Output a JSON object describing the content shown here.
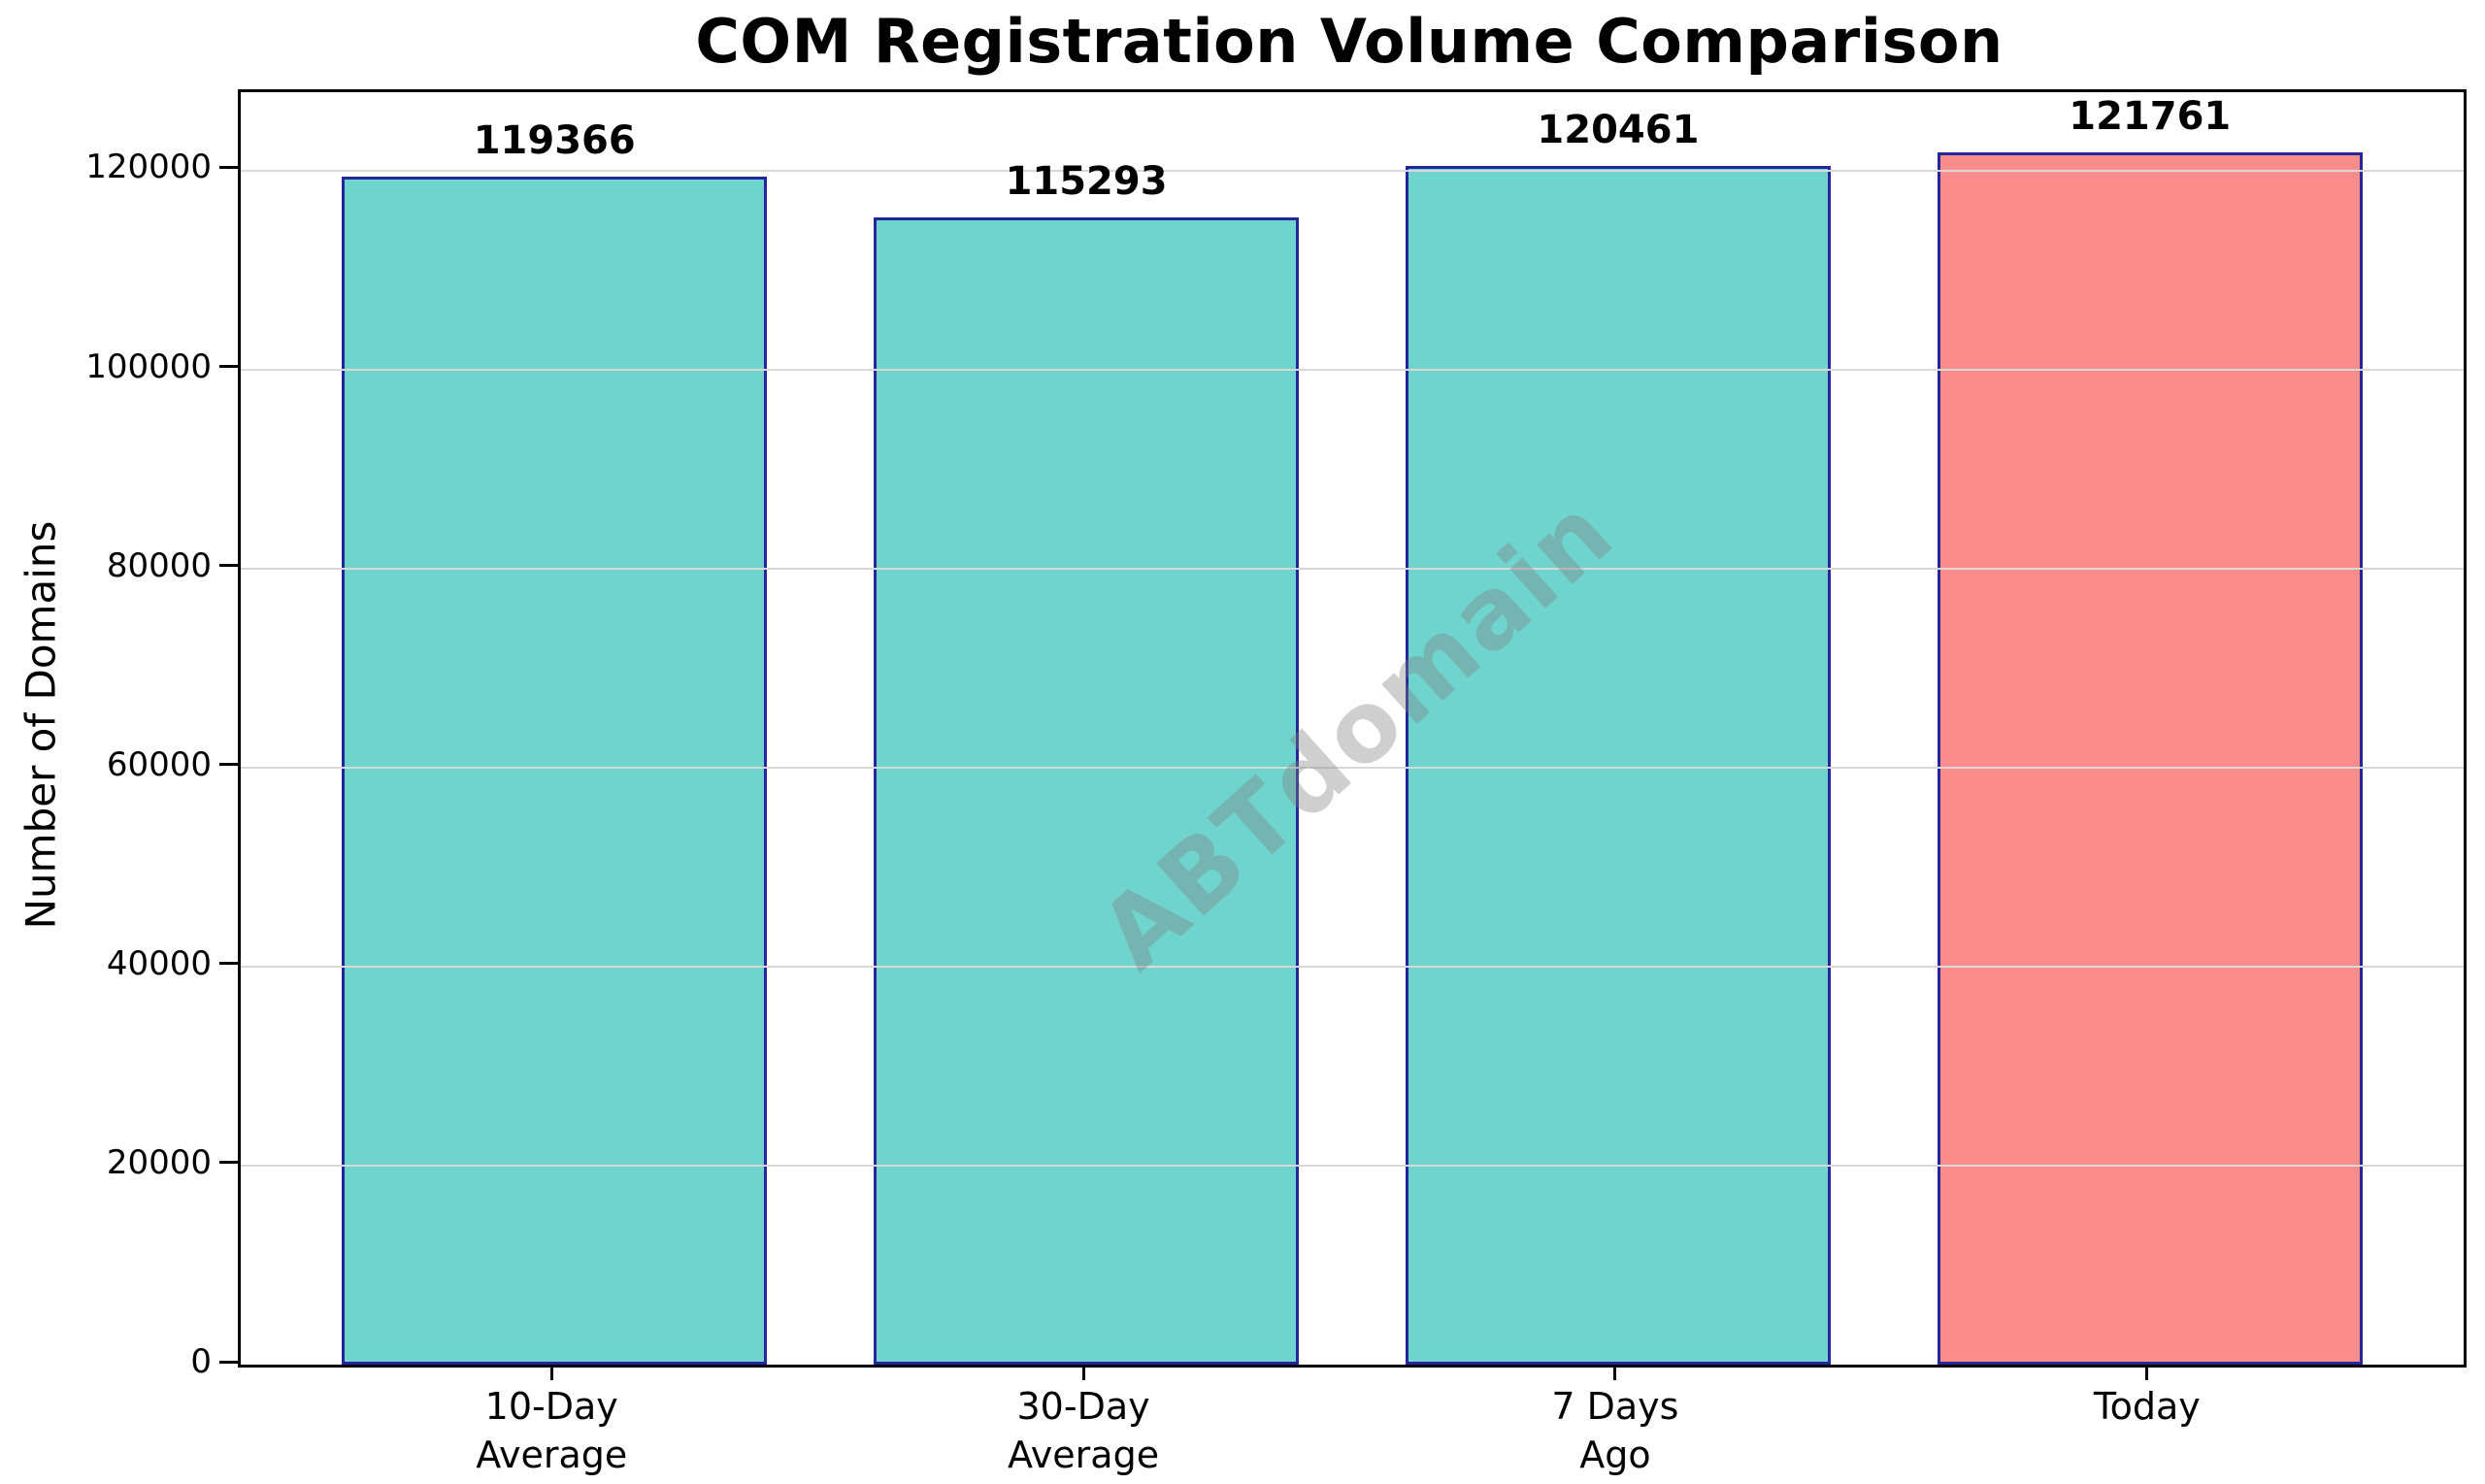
{
  "chart_data": {
    "type": "bar",
    "title": "COM Registration Volume Comparison",
    "ylabel": "Number of Domains",
    "xlabel": "",
    "categories": [
      "10-Day\nAverage",
      "30-Day\nAverage",
      "7 Days\nAgo",
      "Today"
    ],
    "values": [
      119366,
      115293,
      120461,
      121761
    ],
    "bar_value_labels": [
      "119366",
      "115293",
      "120461",
      "121761"
    ],
    "bar_colors": [
      "#6fd4cd",
      "#6fd4cd",
      "#6fd4cd",
      "#fb8c8c"
    ],
    "bar_edge_color": "#26269c",
    "yticks": [
      0,
      20000,
      40000,
      60000,
      80000,
      100000,
      120000
    ],
    "ytick_labels": [
      "0",
      "20000",
      "40000",
      "60000",
      "80000",
      "100000",
      "120000"
    ],
    "ylim": [
      0,
      127849
    ],
    "grid": "horizontal",
    "gridline_color": "#d8d8d8",
    "legend": "none",
    "watermark": "ABTdomain"
  }
}
